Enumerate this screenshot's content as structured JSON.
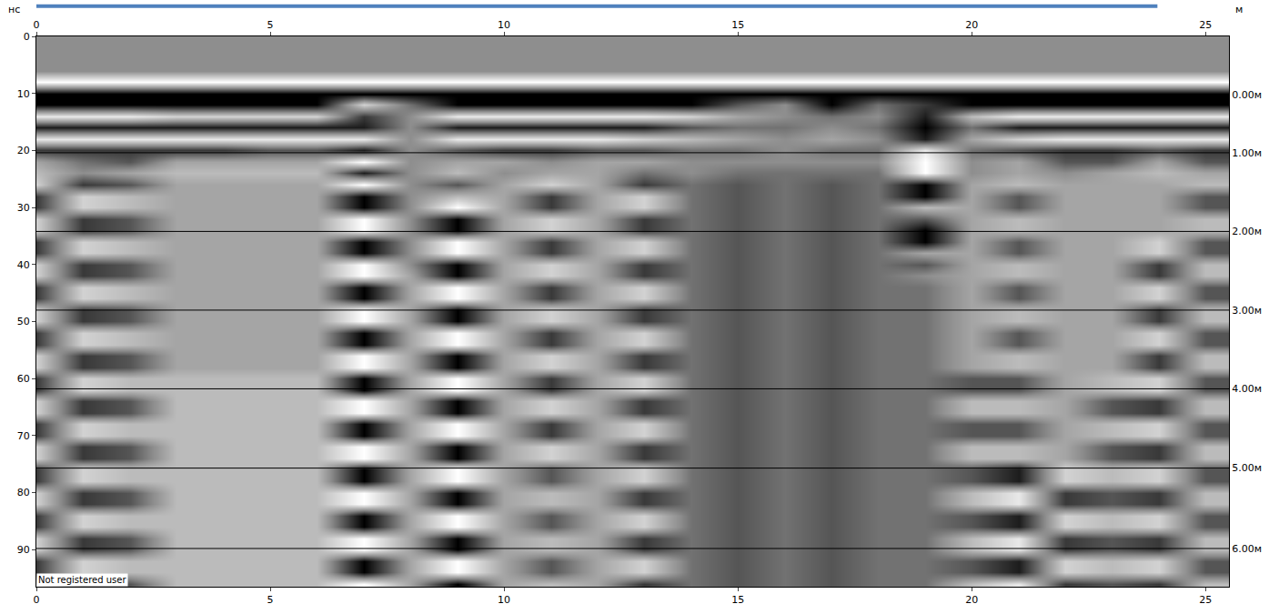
{
  "chart_data": {
    "type": "heatmap",
    "xlabel": "м",
    "ylabel": "нс",
    "annotations": [
      "Not registered user"
    ],
    "xlim": [
      0,
      25.5
    ],
    "xticks": [
      0,
      5,
      10,
      15,
      20,
      25
    ],
    "ylim": [
      96.5,
      0
    ],
    "yticks": [
      0,
      10,
      20,
      30,
      40,
      50,
      60,
      70,
      80,
      90
    ],
    "y2lim": [
      96.5,
      0
    ],
    "y2ticks": [
      {
        "value": 10.3,
        "label": "0.00м"
      },
      {
        "value": 20.4,
        "label": "1.00м"
      },
      {
        "value": 34.2,
        "label": "2.00м"
      },
      {
        "value": 48.0,
        "label": "3.00м"
      },
      {
        "value": 61.8,
        "label": "4.00м"
      },
      {
        "value": 75.7,
        "label": "5.00м"
      },
      {
        "value": 89.8,
        "label": "6.00м"
      }
    ],
    "grid": true,
    "zlim": [
      -5,
      5
    ],
    "x": [
      0,
      1,
      2,
      3,
      4,
      5,
      6,
      7,
      8,
      9,
      10,
      11,
      12,
      13,
      14,
      15,
      16,
      17,
      18,
      19,
      20,
      21,
      22,
      23,
      24,
      25
    ],
    "y": [
      0,
      2,
      4,
      6,
      8,
      10,
      12,
      14,
      16,
      18,
      20,
      22,
      24,
      26,
      28,
      30,
      32,
      34,
      36,
      38,
      40,
      42,
      44,
      46,
      48,
      50,
      52,
      54,
      56,
      58,
      60,
      62,
      64,
      66,
      68,
      70,
      72,
      74,
      76,
      78,
      80,
      82,
      84,
      86,
      88,
      90,
      92,
      94,
      96
    ],
    "z": [
      [
        0,
        0,
        0,
        0,
        0,
        0,
        0,
        0,
        0,
        0,
        0,
        0,
        0,
        0,
        0,
        0,
        0,
        0,
        0,
        0,
        0,
        0,
        0,
        0,
        0,
        0
      ],
      [
        0,
        0,
        0,
        0,
        0,
        0,
        0,
        0,
        0,
        0,
        0,
        0,
        0,
        0,
        0,
        0,
        0,
        0,
        0,
        0,
        0,
        0,
        0,
        0,
        0,
        0
      ],
      [
        0,
        0,
        0,
        0,
        0,
        0,
        0,
        0,
        0,
        0,
        0,
        0,
        0,
        0,
        0,
        0,
        0,
        0,
        0,
        0,
        0,
        0,
        0,
        0,
        0,
        0
      ],
      [
        0,
        0,
        0,
        0,
        0,
        0,
        0,
        0,
        0,
        0,
        0,
        0,
        0,
        0,
        0,
        0,
        0,
        0,
        0,
        0,
        0,
        0,
        0,
        0,
        0,
        0
      ],
      [
        5,
        5,
        5,
        5,
        5,
        5,
        5,
        5,
        5,
        5,
        5,
        5,
        5,
        5,
        5,
        5,
        5,
        5,
        5,
        5,
        5,
        5,
        5,
        5,
        5,
        5
      ],
      [
        -5,
        -5,
        -5,
        -5,
        -5,
        -5,
        -5,
        -5,
        -5,
        -5,
        -5,
        -5,
        -5,
        -5,
        -5,
        -5,
        -5,
        -5,
        -5,
        -5,
        -5,
        -5,
        -5,
        -5,
        -5,
        -5
      ],
      [
        -5,
        -5,
        -5,
        -5,
        -5,
        -5,
        -5,
        3,
        -1,
        -5,
        -5,
        -5,
        -5,
        -5,
        -5,
        -2,
        0,
        -5,
        -1,
        -3,
        -5,
        -5,
        -5,
        -5,
        -5,
        -5
      ],
      [
        4,
        4,
        4,
        3,
        3,
        3,
        3,
        -3,
        0,
        4,
        4,
        4,
        4,
        4,
        3,
        1,
        0,
        -1,
        0,
        -4,
        2,
        4,
        4,
        4,
        4,
        4
      ],
      [
        -4,
        -4,
        -4,
        -4,
        -4,
        -4,
        -4,
        -4,
        0,
        -4,
        -4,
        -4,
        -4,
        -4,
        -2,
        -1,
        -1,
        0,
        -1,
        -5,
        -1,
        -4,
        -4,
        -4,
        -4,
        -4
      ],
      [
        4,
        4,
        4,
        4,
        4,
        4,
        4,
        4,
        0,
        4,
        4,
        4,
        4,
        3,
        2,
        1,
        0,
        1,
        0,
        -4,
        1,
        3,
        4,
        4,
        4,
        4
      ],
      [
        -3,
        -3,
        -3,
        -3,
        -3,
        -2,
        -2,
        -4,
        0,
        -2,
        -3,
        -3,
        -2,
        -2,
        -1,
        -1,
        0,
        -1,
        -1,
        4,
        -1,
        -2,
        -3,
        -3,
        -2,
        -3
      ],
      [
        1,
        -1,
        -2,
        1,
        1,
        1,
        1,
        5,
        0,
        1,
        1,
        0,
        1,
        1,
        0,
        0,
        0,
        0,
        0,
        5,
        0,
        1,
        -2,
        -2,
        1,
        -2
      ],
      [
        2,
        0,
        1,
        2,
        2,
        2,
        2,
        -4,
        0,
        2,
        0,
        1,
        1,
        -1,
        0,
        -1,
        -1,
        -1,
        -1,
        5,
        0,
        1,
        0,
        1,
        2,
        1
      ],
      [
        3,
        -3,
        -2,
        1,
        1,
        1,
        1,
        5,
        0,
        -2,
        1,
        3,
        1,
        -3,
        -1,
        -2,
        -1,
        -2,
        -1,
        -5,
        1,
        2,
        1,
        1,
        1,
        2
      ],
      [
        -3,
        3,
        2,
        1,
        1,
        1,
        1,
        -5,
        0,
        2,
        1,
        -3,
        1,
        3,
        -1,
        -2,
        -1,
        -2,
        -1,
        -5,
        1,
        -2,
        1,
        1,
        1,
        -2
      ],
      [
        -3,
        3,
        2,
        1,
        1,
        1,
        1,
        -5,
        0,
        5,
        1,
        -3,
        1,
        3,
        -1,
        -2,
        -1,
        -2,
        -1,
        2,
        1,
        -2,
        1,
        1,
        1,
        -2
      ],
      [
        3,
        -3,
        -2,
        1,
        1,
        1,
        1,
        5,
        0,
        -5,
        1,
        3,
        1,
        -3,
        -1,
        -2,
        -1,
        -2,
        -1,
        -2,
        1,
        2,
        1,
        1,
        1,
        2
      ],
      [
        3,
        -3,
        -2,
        1,
        1,
        1,
        1,
        5,
        0,
        -5,
        1,
        3,
        1,
        -3,
        -1,
        -2,
        -1,
        -2,
        -1,
        -5,
        1,
        2,
        1,
        1,
        1,
        2
      ],
      [
        -3,
        3,
        2,
        1,
        1,
        1,
        1,
        -5,
        0,
        5,
        1,
        -3,
        1,
        3,
        -1,
        -2,
        -1,
        -2,
        -1,
        -5,
        1,
        -2,
        1,
        1,
        3,
        -2
      ],
      [
        -3,
        3,
        2,
        1,
        1,
        1,
        1,
        -5,
        0,
        5,
        1,
        -3,
        1,
        3,
        -1,
        -2,
        -1,
        -2,
        -1,
        1,
        1,
        -2,
        1,
        1,
        3,
        -2
      ],
      [
        3,
        -3,
        -2,
        1,
        1,
        1,
        1,
        5,
        0,
        -5,
        1,
        3,
        1,
        -3,
        -1,
        -2,
        -1,
        -2,
        -1,
        -2,
        1,
        2,
        1,
        1,
        -3,
        2
      ],
      [
        3,
        -3,
        -2,
        1,
        1,
        1,
        1,
        5,
        1,
        -5,
        1,
        3,
        1,
        -3,
        -1,
        -2,
        -1,
        -2,
        -1,
        0,
        1,
        2,
        1,
        1,
        -3,
        2
      ],
      [
        -3,
        3,
        2,
        1,
        1,
        1,
        1,
        -5,
        1,
        5,
        1,
        -3,
        1,
        3,
        -1,
        -2,
        -1,
        -2,
        -1,
        -1,
        1,
        -2,
        1,
        1,
        3,
        -2
      ],
      [
        -3,
        3,
        2,
        1,
        1,
        1,
        1,
        -5,
        1,
        5,
        1,
        -3,
        1,
        3,
        -1,
        -2,
        -1,
        -2,
        -1,
        -1,
        1,
        -2,
        1,
        1,
        3,
        -2
      ],
      [
        3,
        -3,
        -2,
        1,
        1,
        1,
        1,
        5,
        1,
        -5,
        1,
        3,
        1,
        -3,
        -1,
        -2,
        -1,
        -2,
        -1,
        -1,
        1,
        2,
        1,
        1,
        -3,
        2
      ],
      [
        3,
        -3,
        -2,
        1,
        1,
        1,
        1,
        5,
        1,
        -5,
        1,
        3,
        1,
        -3,
        -1,
        -2,
        -1,
        -2,
        -1,
        -1,
        1,
        2,
        1,
        1,
        -3,
        2
      ],
      [
        -3,
        3,
        2,
        1,
        1,
        1,
        1,
        -5,
        1,
        5,
        1,
        -3,
        1,
        3,
        -1,
        -2,
        -1,
        -2,
        -1,
        -1,
        1,
        -2,
        1,
        1,
        3,
        -2
      ],
      [
        -3,
        3,
        2,
        1,
        1,
        1,
        1,
        -5,
        1,
        5,
        1,
        -3,
        1,
        3,
        -1,
        -2,
        -1,
        -2,
        -1,
        -1,
        1,
        -2,
        1,
        1,
        3,
        -2
      ],
      [
        3,
        -3,
        -2,
        1,
        1,
        1,
        1,
        5,
        1,
        -5,
        1,
        3,
        1,
        -3,
        -1,
        -2,
        -1,
        -2,
        -1,
        -1,
        1,
        2,
        1,
        1,
        -3,
        2
      ],
      [
        3,
        -3,
        -2,
        1,
        1,
        1,
        1,
        5,
        1,
        -5,
        1,
        3,
        1,
        -3,
        -1,
        -2,
        -1,
        -2,
        -1,
        -1,
        1,
        2,
        1,
        1,
        -3,
        2
      ],
      [
        -3,
        3,
        2,
        2,
        2,
        2,
        2,
        -5,
        1,
        5,
        1,
        -3,
        1,
        3,
        -1,
        -2,
        -1,
        -2,
        -1,
        -1,
        -2,
        -2,
        1,
        2,
        3,
        -2
      ],
      [
        -3,
        3,
        2,
        2,
        2,
        2,
        2,
        -5,
        1,
        5,
        1,
        -3,
        1,
        3,
        -1,
        -2,
        -1,
        -2,
        -1,
        -1,
        -2,
        -2,
        1,
        2,
        3,
        -2
      ],
      [
        3,
        -3,
        -2,
        2,
        2,
        2,
        2,
        5,
        1,
        -5,
        1,
        3,
        1,
        -3,
        -1,
        -2,
        -1,
        -2,
        -1,
        -1,
        2,
        2,
        1,
        -2,
        -3,
        2
      ],
      [
        3,
        -3,
        -2,
        2,
        2,
        2,
        2,
        5,
        1,
        -5,
        1,
        3,
        1,
        -3,
        -1,
        -2,
        -1,
        -2,
        -1,
        -1,
        2,
        2,
        1,
        -2,
        -3,
        2
      ],
      [
        -3,
        3,
        2,
        2,
        2,
        2,
        2,
        -5,
        1,
        5,
        1,
        -3,
        1,
        3,
        -1,
        -2,
        -1,
        -2,
        -1,
        -1,
        -2,
        -2,
        1,
        2,
        3,
        -2
      ],
      [
        -3,
        3,
        2,
        2,
        2,
        2,
        2,
        -5,
        1,
        5,
        1,
        -3,
        1,
        3,
        -1,
        -2,
        -1,
        -2,
        -1,
        -1,
        -2,
        -2,
        1,
        2,
        3,
        -2
      ],
      [
        3,
        -3,
        -2,
        2,
        2,
        2,
        2,
        5,
        1,
        -5,
        1,
        3,
        1,
        -3,
        -1,
        -2,
        -1,
        -2,
        -1,
        -1,
        2,
        2,
        1,
        -2,
        -3,
        2
      ],
      [
        3,
        -3,
        -2,
        2,
        2,
        2,
        2,
        5,
        1,
        -5,
        1,
        3,
        1,
        -3,
        -1,
        -2,
        -1,
        -2,
        -1,
        -1,
        2,
        2,
        1,
        -2,
        -3,
        2
      ],
      [
        -3,
        3,
        2,
        2,
        2,
        2,
        2,
        -5,
        1,
        5,
        1,
        -2,
        1,
        3,
        -1,
        -2,
        -1,
        -2,
        -1,
        -1,
        -2,
        -4,
        3,
        2,
        3,
        -2
      ],
      [
        -3,
        3,
        2,
        2,
        2,
        2,
        2,
        -5,
        1,
        5,
        1,
        -2,
        1,
        3,
        -1,
        -2,
        -1,
        -2,
        -1,
        -1,
        -2,
        -4,
        3,
        2,
        3,
        -2
      ],
      [
        3,
        -3,
        -2,
        2,
        2,
        2,
        2,
        5,
        1,
        -5,
        1,
        2,
        1,
        -3,
        -1,
        -2,
        -1,
        -2,
        -1,
        -1,
        2,
        4,
        -3,
        -2,
        -3,
        2
      ],
      [
        3,
        -3,
        -2,
        2,
        2,
        2,
        2,
        5,
        1,
        -5,
        1,
        2,
        1,
        -3,
        -1,
        -2,
        -1,
        -2,
        -1,
        -1,
        2,
        4,
        -3,
        -2,
        -3,
        2
      ],
      [
        -3,
        3,
        2,
        2,
        2,
        2,
        2,
        -5,
        1,
        5,
        1,
        -2,
        1,
        3,
        -1,
        -2,
        -1,
        -2,
        -1,
        -1,
        -2,
        -4,
        3,
        2,
        3,
        -2
      ],
      [
        -3,
        3,
        2,
        2,
        2,
        2,
        2,
        -5,
        1,
        5,
        1,
        -2,
        1,
        3,
        -1,
        -2,
        -1,
        -2,
        -1,
        -1,
        -2,
        -4,
        3,
        2,
        3,
        -2
      ],
      [
        3,
        -3,
        -2,
        2,
        2,
        2,
        2,
        5,
        1,
        -5,
        1,
        2,
        1,
        -3,
        -1,
        -2,
        -1,
        -2,
        -1,
        -1,
        2,
        4,
        -3,
        -2,
        -3,
        2
      ],
      [
        3,
        -3,
        -2,
        2,
        2,
        2,
        2,
        5,
        1,
        -5,
        1,
        2,
        1,
        -3,
        -1,
        -2,
        -1,
        -2,
        -1,
        -1,
        2,
        4,
        -3,
        -2,
        -3,
        2
      ],
      [
        -3,
        3,
        2,
        2,
        2,
        2,
        2,
        -5,
        1,
        5,
        1,
        -2,
        1,
        3,
        -1,
        -2,
        -1,
        -2,
        -1,
        -1,
        -2,
        -4,
        3,
        2,
        3,
        -2
      ],
      [
        -3,
        3,
        2,
        2,
        2,
        2,
        2,
        -5,
        1,
        5,
        1,
        -2,
        1,
        3,
        -1,
        -2,
        -1,
        -2,
        -1,
        -1,
        -2,
        -4,
        3,
        2,
        3,
        -2
      ],
      [
        3,
        -3,
        -2,
        2,
        2,
        2,
        2,
        5,
        1,
        -5,
        1,
        2,
        1,
        -3,
        -1,
        -2,
        -1,
        -2,
        -1,
        -1,
        2,
        4,
        -3,
        -2,
        -3,
        2
      ]
    ]
  }
}
